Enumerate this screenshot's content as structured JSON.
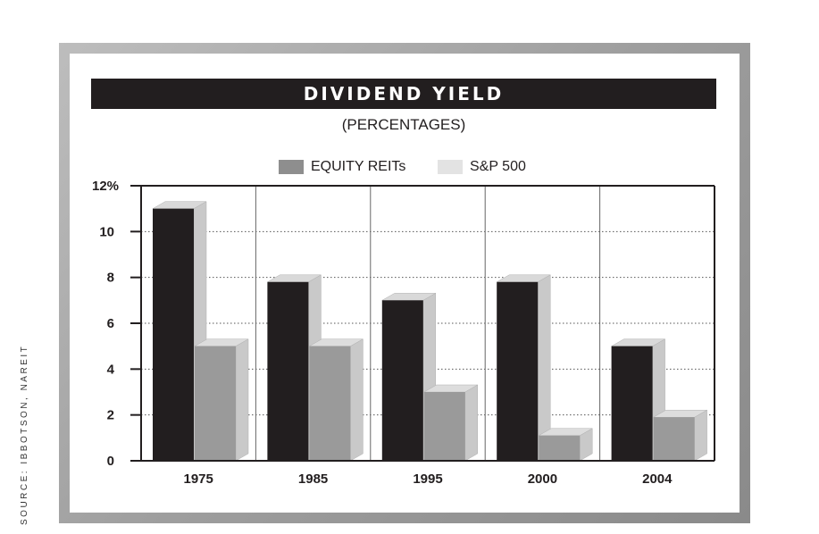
{
  "chart_data": {
    "type": "bar",
    "title": "DIVIDEND YIELD",
    "subtitle": "(PERCENTAGES)",
    "categories": [
      "1975",
      "1985",
      "1995",
      "2000",
      "2004"
    ],
    "series": [
      {
        "name": "EQUITY REITs",
        "values": [
          11,
          7.8,
          7,
          7.8,
          5
        ]
      },
      {
        "name": "S&P 500",
        "values": [
          5,
          5,
          3,
          1.1,
          1.9
        ]
      }
    ],
    "y_ticks": [
      "0",
      "2",
      "4",
      "6",
      "8",
      "10",
      "12%"
    ],
    "ylim": [
      0,
      12
    ],
    "grid": "dotted horizontal",
    "legend_position": "top-center",
    "source": "SOURCE: IBBOTSON, NAREIT",
    "colors": {
      "reits_front": "#221e1f",
      "reits_side": "#c9c9c9",
      "reits_top": "#d9d9d9",
      "sp_front": "#9a9a9a",
      "sp_side": "#c9c9c9",
      "sp_top": "#dddddd",
      "legend_reits": "#8e8e8e",
      "legend_sp": "#e3e3e3"
    }
  }
}
